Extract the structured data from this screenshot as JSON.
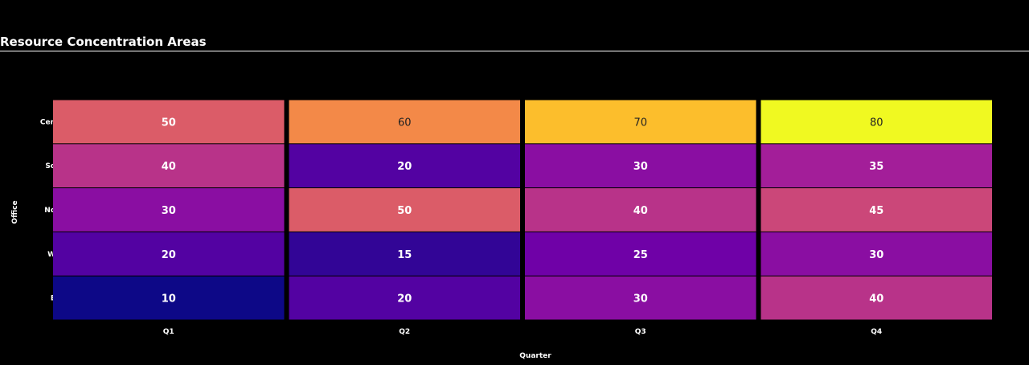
{
  "chart_data": {
    "type": "heatmap",
    "title": "Resource Concentration Areas",
    "xlabel": "Quarter",
    "ylabel": "Office",
    "x_categories": [
      "Q1",
      "Q2",
      "Q3",
      "Q4"
    ],
    "y_categories": [
      "Central",
      "South",
      "North",
      "West",
      "East"
    ],
    "y_tick_labels_visible": [
      "Cen",
      "So",
      "No",
      "W",
      "E"
    ],
    "values": [
      [
        50,
        60,
        70,
        80
      ],
      [
        40,
        20,
        30,
        35
      ],
      [
        30,
        50,
        40,
        45
      ],
      [
        20,
        15,
        25,
        30
      ],
      [
        10,
        20,
        30,
        40
      ]
    ],
    "colorscale": "plasma",
    "value_range": [
      10,
      80
    ]
  },
  "colors": {
    "background": "#000000",
    "text": "#ffffff"
  }
}
